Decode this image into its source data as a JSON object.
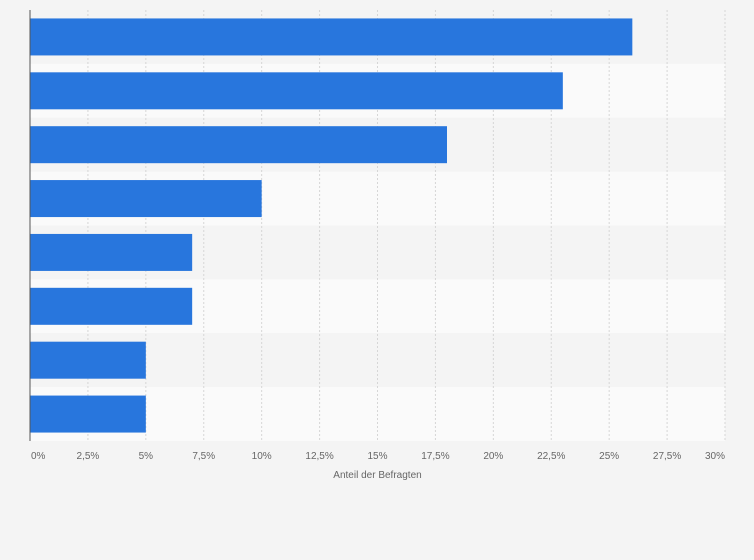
{
  "chart_data": {
    "type": "bar",
    "orientation": "horizontal",
    "categories": [
      "",
      "",
      "",
      "",
      "",
      "",
      "",
      ""
    ],
    "values": [
      26,
      23,
      18,
      10,
      7,
      7,
      5,
      5
    ],
    "title": "",
    "xlabel": "Anteil der Befragten",
    "ylabel": "",
    "xlim": [
      0,
      30
    ],
    "ticks": [
      0,
      2.5,
      5,
      7.5,
      10,
      12.5,
      15,
      17.5,
      20,
      22.5,
      25,
      27.5,
      30
    ],
    "tick_labels": [
      "0%",
      "2,5%",
      "5%",
      "7,5%",
      "10%",
      "12,5%",
      "15%",
      "17,5%",
      "20%",
      "22,5%",
      "25%",
      "27,5%",
      "30%"
    ],
    "grid": true,
    "bar_color": "#2876dd",
    "band_colors": [
      "#f4f4f4",
      "#fafafa"
    ],
    "grid_color": "#d6d6d6",
    "axis_color": "#555555"
  }
}
